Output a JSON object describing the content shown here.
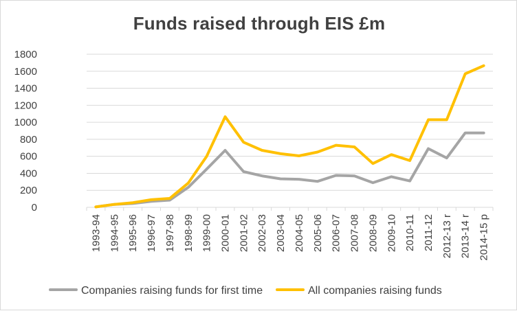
{
  "chart_data": {
    "type": "line",
    "title": "Funds raised through EIS £m",
    "xlabel": "",
    "ylabel": "",
    "ylim": [
      0,
      1800
    ],
    "yticks": [
      0,
      200,
      400,
      600,
      800,
      1000,
      1200,
      1400,
      1600,
      1800
    ],
    "grid": true,
    "legend_position": "bottom",
    "categories": [
      "1993-94",
      "1994-95",
      "1995-96",
      "1996-97",
      "1997-98",
      "1998-99",
      "1999-00",
      "2000-01",
      "2001-02",
      "2002-03",
      "2003-04",
      "2004-05",
      "2005-06",
      "2006-07",
      "2007-08",
      "2008-09",
      "2009-10",
      "2010-11",
      "2011-12",
      "2012-13 r",
      "2013-14 r",
      "2014-15 p"
    ],
    "series": [
      {
        "name": "Companies raising funds for first time",
        "color": "#a5a5a5",
        "values": [
          5,
          35,
          45,
          70,
          85,
          235,
          450,
          670,
          420,
          370,
          335,
          330,
          305,
          375,
          370,
          290,
          360,
          310,
          690,
          580,
          875,
          875
        ]
      },
      {
        "name": "All companies raising funds",
        "color": "#ffc000",
        "values": [
          5,
          35,
          55,
          90,
          105,
          285,
          600,
          1065,
          765,
          670,
          630,
          605,
          650,
          730,
          710,
          515,
          620,
          550,
          1030,
          1030,
          1570,
          1665
        ]
      }
    ]
  }
}
